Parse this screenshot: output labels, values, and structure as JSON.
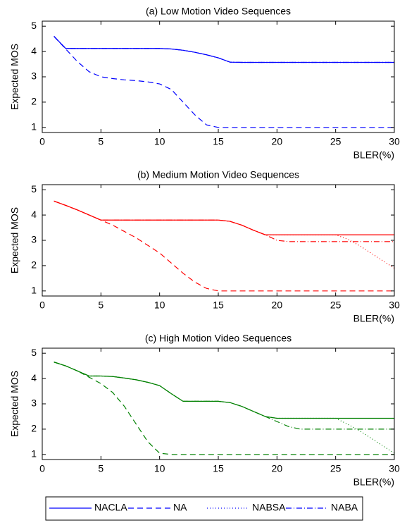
{
  "chart_data": [
    {
      "type": "line",
      "title": "(a) Low Motion Video Sequences",
      "ylabel": "Expected MOS",
      "xlabel": "BLER(%)",
      "x": [
        1,
        2,
        3,
        4,
        5,
        6,
        7,
        8,
        9,
        10,
        11,
        12,
        13,
        14,
        15,
        16,
        17,
        18,
        19,
        20,
        21,
        22,
        23,
        24,
        25,
        26,
        27,
        28,
        29,
        30
      ],
      "xlim": [
        0,
        30
      ],
      "xticks": [
        0,
        5,
        10,
        15,
        20,
        25,
        30
      ],
      "ylim": [
        0.8,
        5.2
      ],
      "yticks": [
        1,
        2,
        3,
        4,
        5
      ],
      "series": [
        {
          "name": "NACLA",
          "color": "#0000ff",
          "style": "solid",
          "values": [
            4.6,
            4.12,
            4.12,
            4.12,
            4.12,
            4.12,
            4.12,
            4.12,
            4.12,
            4.12,
            4.1,
            4.05,
            3.97,
            3.87,
            3.75,
            3.58,
            3.57,
            3.57,
            3.57,
            3.57,
            3.57,
            3.57,
            3.57,
            3.57,
            3.57,
            3.57,
            3.57,
            3.57,
            3.57,
            3.57
          ]
        },
        {
          "name": "NA",
          "color": "#0000ff",
          "style": "dashed",
          "values": [
            4.6,
            4.1,
            3.6,
            3.2,
            3.0,
            2.93,
            2.88,
            2.85,
            2.8,
            2.72,
            2.5,
            2.0,
            1.5,
            1.1,
            1.0,
            1.0,
            1.0,
            1.0,
            1.0,
            1.0,
            1.0,
            1.0,
            1.0,
            1.0,
            1.0,
            1.0,
            1.0,
            1.0,
            1.0,
            1.0
          ]
        },
        {
          "name": "NABSA",
          "color": "#0000ff",
          "style": "dotted",
          "values": [
            4.6,
            4.12,
            4.12,
            4.12,
            4.12,
            4.12,
            4.12,
            4.12,
            4.12,
            4.12,
            4.1,
            4.05,
            3.97,
            3.87,
            3.75,
            3.58,
            3.57,
            3.57,
            3.57,
            3.57,
            3.57,
            3.57,
            3.57,
            3.57,
            3.57,
            3.57,
            3.57,
            3.57,
            3.57,
            3.57
          ]
        },
        {
          "name": "NABA",
          "color": "#0000ff",
          "style": "dashdot",
          "values": [
            4.6,
            4.12,
            4.12,
            4.12,
            4.12,
            4.12,
            4.12,
            4.12,
            4.12,
            4.12,
            4.1,
            4.05,
            3.97,
            3.87,
            3.75,
            3.58,
            3.57,
            3.57,
            3.57,
            3.57,
            3.57,
            3.57,
            3.57,
            3.57,
            3.57,
            3.57,
            3.57,
            3.57,
            3.57,
            3.57
          ]
        }
      ]
    },
    {
      "type": "line",
      "title": "(b) Medium Motion Video Sequences",
      "ylabel": "Expected MOS",
      "xlabel": "BLER(%)",
      "x": [
        1,
        2,
        3,
        4,
        5,
        6,
        7,
        8,
        9,
        10,
        11,
        12,
        13,
        14,
        15,
        16,
        17,
        18,
        19,
        20,
        21,
        22,
        23,
        24,
        25,
        26,
        27,
        28,
        29,
        30
      ],
      "xlim": [
        0,
        30
      ],
      "xticks": [
        0,
        5,
        10,
        15,
        20,
        25,
        30
      ],
      "ylim": [
        0.8,
        5.2
      ],
      "yticks": [
        1,
        2,
        3,
        4,
        5
      ],
      "series": [
        {
          "color": "#ff0000",
          "style": "solid",
          "values": [
            4.55,
            4.38,
            4.2,
            4.0,
            3.8,
            3.8,
            3.8,
            3.8,
            3.8,
            3.8,
            3.8,
            3.8,
            3.8,
            3.8,
            3.8,
            3.75,
            3.6,
            3.4,
            3.22,
            3.22,
            3.22,
            3.22,
            3.22,
            3.22,
            3.22,
            3.22,
            3.22,
            3.22,
            3.22,
            3.22
          ]
        },
        {
          "color": "#ff0000",
          "style": "dashed",
          "values": [
            4.55,
            4.38,
            4.2,
            4.0,
            3.8,
            3.6,
            3.35,
            3.1,
            2.8,
            2.5,
            2.1,
            1.7,
            1.35,
            1.1,
            1.0,
            1.0,
            1.0,
            1.0,
            1.0,
            1.0,
            1.0,
            1.0,
            1.0,
            1.0,
            1.0,
            1.0,
            1.0,
            1.0,
            1.0,
            1.0
          ]
        },
        {
          "color": "#ff0000",
          "style": "dotted",
          "values": [
            4.55,
            4.38,
            4.2,
            4.0,
            3.8,
            3.8,
            3.8,
            3.8,
            3.8,
            3.8,
            3.8,
            3.8,
            3.8,
            3.8,
            3.8,
            3.75,
            3.6,
            3.4,
            3.22,
            3.22,
            3.22,
            3.22,
            3.22,
            3.22,
            3.22,
            3.05,
            2.8,
            2.5,
            2.2,
            1.9
          ]
        },
        {
          "color": "#ff0000",
          "style": "dashdot",
          "values": [
            4.55,
            4.38,
            4.2,
            4.0,
            3.8,
            3.8,
            3.8,
            3.8,
            3.8,
            3.8,
            3.8,
            3.8,
            3.8,
            3.8,
            3.8,
            3.75,
            3.6,
            3.4,
            3.22,
            3.0,
            2.95,
            2.95,
            2.95,
            2.95,
            2.95,
            2.95,
            2.95,
            2.95,
            2.95,
            2.95
          ]
        }
      ]
    },
    {
      "type": "line",
      "title": "(c) High Motion Video Sequences",
      "ylabel": "Expected MOS",
      "xlabel": "BLER(%)",
      "x": [
        1,
        2,
        3,
        4,
        5,
        6,
        7,
        8,
        9,
        10,
        11,
        12,
        13,
        14,
        15,
        16,
        17,
        18,
        19,
        20,
        21,
        22,
        23,
        24,
        25,
        26,
        27,
        28,
        29,
        30
      ],
      "xlim": [
        0,
        30
      ],
      "xticks": [
        0,
        5,
        10,
        15,
        20,
        25,
        30
      ],
      "ylim": [
        0.8,
        5.2
      ],
      "yticks": [
        1,
        2,
        3,
        4,
        5
      ],
      "series": [
        {
          "color": "#008000",
          "style": "solid",
          "values": [
            4.65,
            4.5,
            4.3,
            4.1,
            4.1,
            4.08,
            4.02,
            3.95,
            3.85,
            3.72,
            3.4,
            3.1,
            3.1,
            3.1,
            3.1,
            3.05,
            2.9,
            2.7,
            2.5,
            2.43,
            2.43,
            2.43,
            2.43,
            2.43,
            2.43,
            2.43,
            2.43,
            2.43,
            2.43,
            2.43
          ]
        },
        {
          "color": "#008000",
          "style": "dashed",
          "values": [
            4.65,
            4.5,
            4.3,
            4.05,
            3.8,
            3.45,
            2.9,
            2.2,
            1.5,
            1.05,
            1.0,
            1.0,
            1.0,
            1.0,
            1.0,
            1.0,
            1.0,
            1.0,
            1.0,
            1.0,
            1.0,
            1.0,
            1.0,
            1.0,
            1.0,
            1.0,
            1.0,
            1.0,
            1.0,
            1.0
          ]
        },
        {
          "color": "#008000",
          "style": "dotted",
          "values": [
            4.65,
            4.5,
            4.3,
            4.1,
            4.1,
            4.08,
            4.02,
            3.95,
            3.85,
            3.72,
            3.4,
            3.1,
            3.1,
            3.1,
            3.1,
            3.05,
            2.9,
            2.7,
            2.5,
            2.43,
            2.43,
            2.43,
            2.43,
            2.43,
            2.43,
            2.2,
            1.95,
            1.65,
            1.35,
            1.05
          ]
        },
        {
          "color": "#008000",
          "style": "dashdot",
          "values": [
            4.65,
            4.5,
            4.3,
            4.1,
            4.1,
            4.08,
            4.02,
            3.95,
            3.85,
            3.72,
            3.4,
            3.1,
            3.1,
            3.1,
            3.1,
            3.05,
            2.9,
            2.7,
            2.5,
            2.3,
            2.1,
            2.0,
            2.0,
            2.0,
            2.0,
            2.0,
            2.0,
            2.0,
            2.0,
            2.0
          ]
        }
      ]
    }
  ]
}
